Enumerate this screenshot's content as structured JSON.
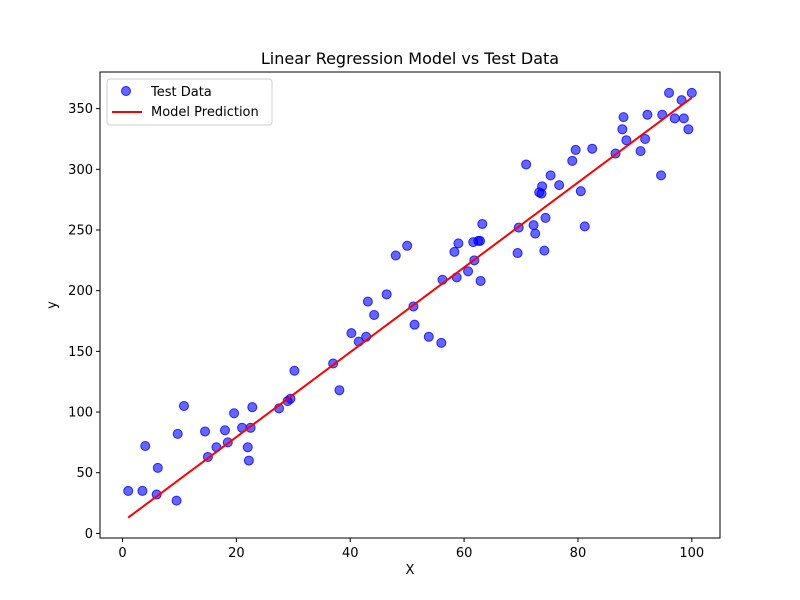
{
  "chart_data": {
    "type": "scatter",
    "title": "Linear Regression Model vs Test Data",
    "xlabel": "X",
    "ylabel": "y",
    "xlim": [
      -3.95,
      104.95
    ],
    "ylim": [
      -3.8,
      380.2
    ],
    "xticks": [
      0,
      20,
      40,
      60,
      80,
      100
    ],
    "yticks": [
      0,
      50,
      100,
      150,
      200,
      250,
      300,
      350
    ],
    "grid": false,
    "legend_position": "top-left",
    "series": [
      {
        "name": "Test Data",
        "kind": "scatter",
        "color": "#0000ff",
        "points": [
          [
            1,
            35
          ],
          [
            3.5,
            35
          ],
          [
            4,
            72
          ],
          [
            6,
            32
          ],
          [
            6.2,
            54
          ],
          [
            9.5,
            27
          ],
          [
            9.7,
            82
          ],
          [
            10.8,
            105
          ],
          [
            14.5,
            84
          ],
          [
            15,
            63
          ],
          [
            16.5,
            71
          ],
          [
            18,
            85
          ],
          [
            18.5,
            75
          ],
          [
            19.6,
            99
          ],
          [
            21,
            87
          ],
          [
            22,
            71
          ],
          [
            22.2,
            60
          ],
          [
            22.5,
            87
          ],
          [
            22.8,
            104
          ],
          [
            27.5,
            103
          ],
          [
            29,
            109
          ],
          [
            29.5,
            111
          ],
          [
            30.2,
            134
          ],
          [
            37,
            140
          ],
          [
            38.1,
            118
          ],
          [
            40.2,
            165
          ],
          [
            41.5,
            158
          ],
          [
            42.8,
            162
          ],
          [
            43.1,
            191
          ],
          [
            44.2,
            180
          ],
          [
            46.4,
            197
          ],
          [
            48,
            229
          ],
          [
            50,
            237
          ],
          [
            51.1,
            187
          ],
          [
            51.3,
            172
          ],
          [
            53.8,
            162
          ],
          [
            56,
            157
          ],
          [
            56.2,
            209
          ],
          [
            58.3,
            232
          ],
          [
            58.7,
            211
          ],
          [
            59,
            239
          ],
          [
            60.7,
            216
          ],
          [
            61.6,
            240
          ],
          [
            61.8,
            225
          ],
          [
            62.5,
            241
          ],
          [
            62.8,
            241
          ],
          [
            62.9,
            208
          ],
          [
            63.2,
            255
          ],
          [
            69.4,
            231
          ],
          [
            69.6,
            252
          ],
          [
            70.9,
            304
          ],
          [
            72.2,
            254
          ],
          [
            72.5,
            247
          ],
          [
            73.2,
            281
          ],
          [
            73.6,
            280
          ],
          [
            73.7,
            286
          ],
          [
            74.1,
            233
          ],
          [
            74.3,
            260
          ],
          [
            75.2,
            295
          ],
          [
            76.7,
            287
          ],
          [
            79,
            307
          ],
          [
            79.6,
            316
          ],
          [
            80.5,
            282
          ],
          [
            81.2,
            253
          ],
          [
            82.5,
            317
          ],
          [
            86.6,
            313
          ],
          [
            87.8,
            333
          ],
          [
            88,
            343
          ],
          [
            88.5,
            324
          ],
          [
            91,
            315
          ],
          [
            91.8,
            325
          ],
          [
            92.2,
            345
          ],
          [
            94.6,
            295
          ],
          [
            94.8,
            345
          ],
          [
            96,
            363
          ],
          [
            97,
            342
          ],
          [
            98.2,
            357
          ],
          [
            98.6,
            342
          ],
          [
            99.4,
            333
          ],
          [
            100,
            363
          ]
        ]
      },
      {
        "name": "Model Prediction",
        "kind": "line",
        "color": "#ff0000",
        "x": [
          1,
          100
        ],
        "y": [
          13,
          359
        ]
      }
    ]
  }
}
